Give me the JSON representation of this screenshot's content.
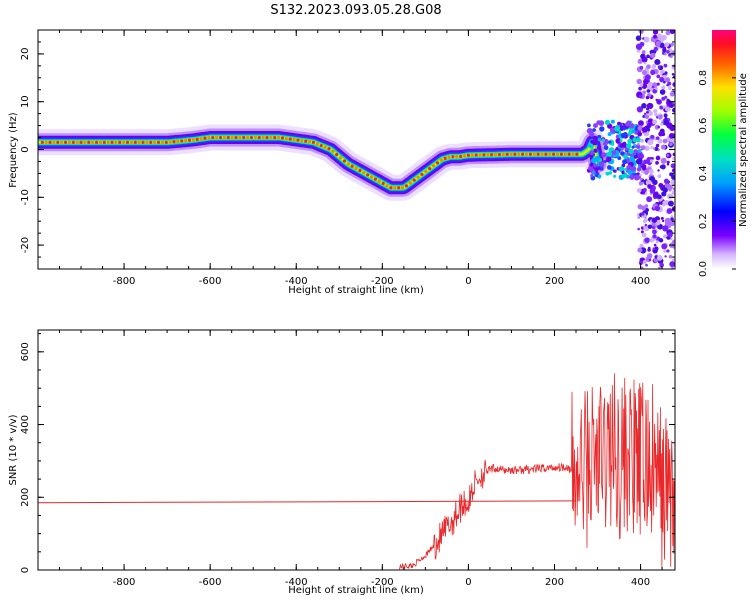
{
  "title": "S132.2023.093.05.28.G08",
  "chart_data": [
    {
      "type": "heatmap",
      "xlabel": "Height of straight line (km)",
      "ylabel": "Frequency (Hz)",
      "xlim": [
        -1000,
        480
      ],
      "ylim": [
        -25,
        25
      ],
      "x_ticks": [
        "-800",
        "-600",
        "-400",
        "-200",
        "0",
        "200",
        "400"
      ],
      "x_tick_values": [
        -800,
        -600,
        -400,
        -200,
        0,
        200,
        400
      ],
      "y_ticks": [
        "-20",
        "-10",
        "0",
        "10",
        "20"
      ],
      "y_tick_values": [
        -20,
        -10,
        0,
        10,
        20
      ],
      "ridge": {
        "x": [
          -1000,
          -900,
          -800,
          -700,
          -640,
          -600,
          -520,
          -440,
          -400,
          -360,
          -320,
          -280,
          -240,
          -200,
          -180,
          -150,
          -120,
          -90,
          -60,
          -40,
          -20,
          0,
          100,
          200,
          240,
          265,
          280,
          290,
          300,
          320,
          350,
          380
        ],
        "y": [
          1.5,
          1.5,
          1.5,
          1.5,
          2,
          2.5,
          2.5,
          2.5,
          2,
          1.5,
          0,
          -3,
          -5,
          -7,
          -8,
          -8,
          -6,
          -4,
          -2,
          -1.5,
          -1.5,
          -1.2,
          -1,
          -1,
          -1,
          -1,
          0,
          2,
          -3,
          1,
          0.5,
          -1
        ]
      },
      "colorbar": {
        "label": "Normalized spectral amplitude",
        "ticks": [
          "0.0",
          "0.2",
          "0.4",
          "0.6",
          "0.8"
        ],
        "tick_values": [
          0.0,
          0.2,
          0.4,
          0.6,
          0.8
        ],
        "range": [
          0,
          1
        ]
      }
    },
    {
      "type": "line",
      "xlabel": "Height of straight line (km)",
      "ylabel": "SNR (10 * v/v)",
      "xlim": [
        -1000,
        480
      ],
      "ylim": [
        0,
        660
      ],
      "x_ticks": [
        "-800",
        "-600",
        "-400",
        "-200",
        "0",
        "200",
        "400"
      ],
      "x_tick_values": [
        -800,
        -600,
        -400,
        -200,
        0,
        200,
        400
      ],
      "y_ticks": [
        "0",
        "200",
        "400",
        "600"
      ],
      "y_tick_values": [
        0,
        200,
        400,
        600
      ],
      "series": [
        {
          "color": "#e8282a",
          "x": [
            -1000,
            -160,
            -130,
            -100,
            -70,
            -40,
            -10,
            0,
            10,
            20,
            40,
            60,
            80,
            120,
            160,
            200,
            230,
            250,
            270,
            290,
            310,
            330,
            350,
            370,
            390,
            410,
            430,
            450,
            470,
            480
          ],
          "y": [
            185,
            10,
            12,
            40,
            80,
            130,
            190,
            180,
            225,
            250,
            270,
            280,
            275,
            275,
            278,
            282,
            285,
            250,
            280,
            310,
            300,
            340,
            310,
            320,
            290,
            300,
            280,
            220,
            220,
            170
          ]
        }
      ],
      "reference_line": {
        "x": [
          -1000,
          250
        ],
        "y": [
          185,
          190
        ]
      }
    }
  ]
}
